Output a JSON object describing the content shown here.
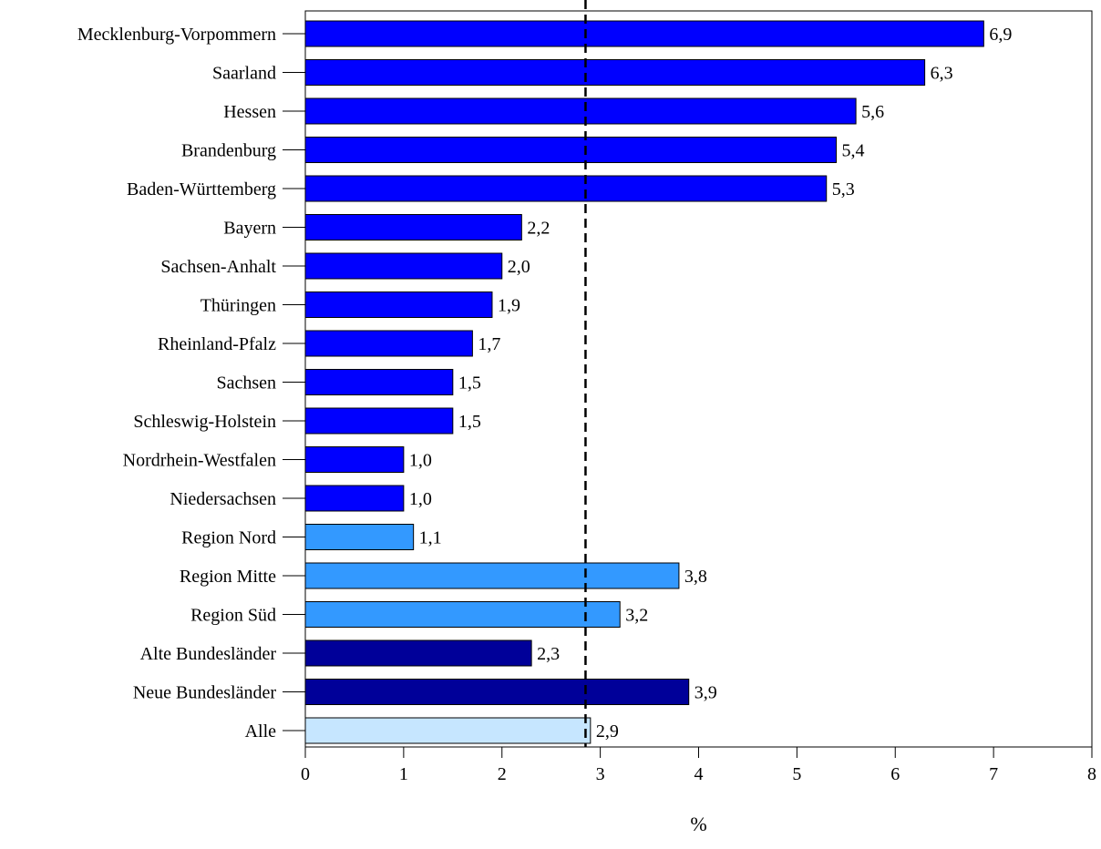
{
  "chart_data": {
    "type": "bar",
    "orientation": "horizontal",
    "title": "",
    "xlabel": "%",
    "ylabel": "",
    "xlim": [
      0,
      8
    ],
    "xticks": [
      0,
      1,
      2,
      3,
      4,
      5,
      6,
      7,
      8
    ],
    "grid": false,
    "legend": "none",
    "reference_line": {
      "value": 2.85,
      "style": "dashed",
      "color": "#000000"
    },
    "categories": [
      "Mecklenburg-Vorpommern",
      "Saarland",
      "Hessen",
      "Brandenburg",
      "Baden-Württemberg",
      "Bayern",
      "Sachsen-Anhalt",
      "Thüringen",
      "Rheinland-Pfalz",
      "Sachsen",
      "Schleswig-Holstein",
      "Nordrhein-Westfalen",
      "Niedersachsen",
      "Region Nord",
      "Region Mitte",
      "Region Süd",
      "Alte Bundesländer",
      "Neue Bundesländer",
      "Alle"
    ],
    "values": [
      6.9,
      6.3,
      5.6,
      5.4,
      5.3,
      2.2,
      2.0,
      1.9,
      1.7,
      1.5,
      1.5,
      1.0,
      1.0,
      1.1,
      3.8,
      3.2,
      2.3,
      3.9,
      2.9
    ],
    "value_labels": [
      "6,9",
      "6,3",
      "5,6",
      "5,4",
      "5,3",
      "2,2",
      "2,0",
      "1,9",
      "1,7",
      "1,5",
      "1,5",
      "1,0",
      "1,0",
      "1,1",
      "3,8",
      "3,2",
      "2,3",
      "3,9",
      "2,9"
    ],
    "bar_colors": [
      "#0000FF",
      "#0000FF",
      "#0000FF",
      "#0000FF",
      "#0000FF",
      "#0000FF",
      "#0000FF",
      "#0000FF",
      "#0000FF",
      "#0000FF",
      "#0000FF",
      "#0000FF",
      "#0000FF",
      "#3399FF",
      "#3399FF",
      "#3399FF",
      "#000099",
      "#000099",
      "#C6E6FF"
    ]
  }
}
